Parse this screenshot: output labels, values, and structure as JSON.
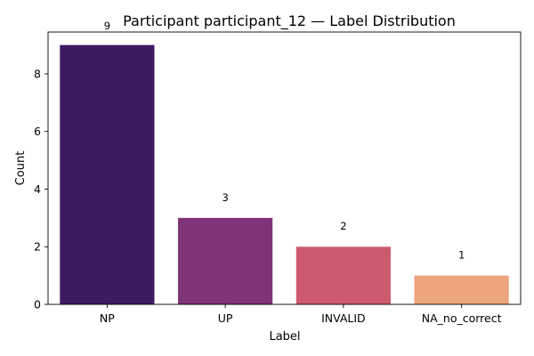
{
  "chart_data": {
    "type": "bar",
    "title": "Participant participant_12 — Label Distribution",
    "xlabel": "Label",
    "ylabel": "Count",
    "categories": [
      "NP",
      "UP",
      "INVALID",
      "NA_no_correct"
    ],
    "values": [
      9,
      3,
      2,
      1
    ],
    "data_labels": [
      "9",
      "3",
      "2",
      "1"
    ],
    "colors": [
      "#3d1b63",
      "#7f3477",
      "#ce5a6f",
      "#eea47c"
    ],
    "ylim": [
      0,
      9.45
    ],
    "yticks": [
      0,
      2,
      4,
      6,
      8
    ],
    "grid": false,
    "legend": "none"
  }
}
